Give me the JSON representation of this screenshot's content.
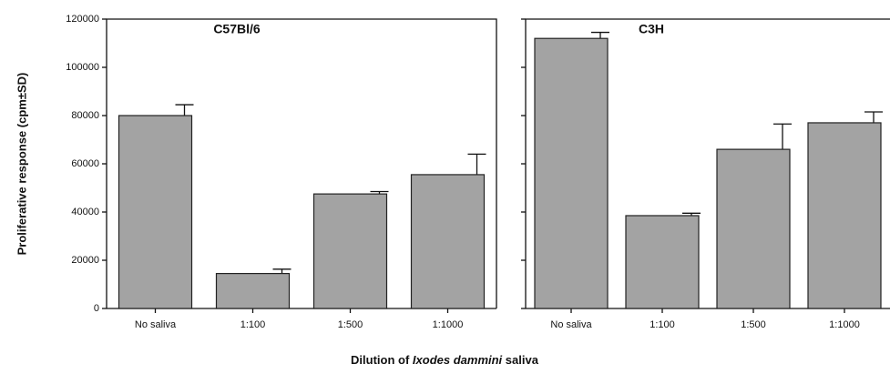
{
  "y_label": "Proliferative response (cpm±SD)",
  "x_label": [
    "Dilution of ",
    "Ixodes dammini",
    " saliva"
  ],
  "chart_data": [
    {
      "type": "bar",
      "title": "C57Bl/6",
      "categories": [
        "No saliva",
        "1:100",
        "1:500",
        "1:1000"
      ],
      "values": [
        80000,
        14500,
        47500,
        55500
      ],
      "errors": [
        4500,
        1800,
        1000,
        8500
      ],
      "color": "#a3a3a3",
      "ylim": [
        0,
        120000
      ],
      "yticks": [
        0,
        20000,
        40000,
        60000,
        80000,
        100000,
        120000
      ],
      "show_ytick_labels": true
    },
    {
      "type": "bar",
      "title": "C3H",
      "categories": [
        "No saliva",
        "1:100",
        "1:500",
        "1:1000"
      ],
      "values": [
        112000,
        38500,
        66000,
        77000
      ],
      "errors": [
        2500,
        1000,
        10500,
        4500
      ],
      "color": "#a3a3a3",
      "ylim": [
        0,
        120000
      ],
      "yticks": [
        0,
        20000,
        40000,
        60000,
        80000,
        100000,
        120000
      ],
      "show_ytick_labels": false
    }
  ]
}
